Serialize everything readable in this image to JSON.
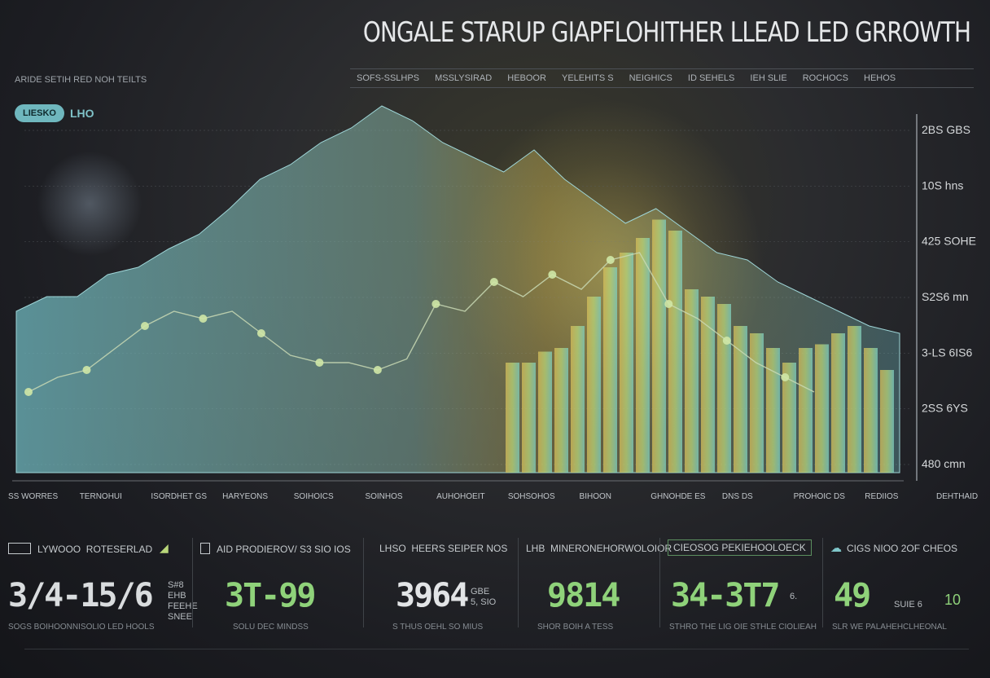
{
  "title": "ONGALE STARUP GIAPFLOHITHER LLEAD LED GRROWTH",
  "subtitle": "ARIDE SETIH RED NOH TEILTS",
  "header_strip": [
    "SOFS-SSLHPS",
    "MSSLYSIRAD",
    "HEBOOR",
    "YELEHITS S",
    "NEIGHICS",
    "ID SEHELS",
    "IEH SLIE",
    "ROCHOCS",
    "HEHOS"
  ],
  "legend": {
    "pill": "LIESKO",
    "tag": "LHO"
  },
  "colors": {
    "teal": "#6fb7be",
    "gold": "#d6be5a",
    "green": "#8fd27a",
    "gridline": "#5a5e63"
  },
  "chart_data": {
    "type": "area",
    "x_labels": [
      "SS WORRES",
      "TERNOHUI",
      "ISORDHET GS",
      "HARYEONS",
      "SOIHOICS",
      "SOINHOS",
      "AUHOHOEIT",
      "SOHSOHOS",
      "BIHOON",
      "GHNOHDE ES",
      "DNS DS",
      "PROHOIC DS",
      "REDIIOS",
      "DEHTHAID"
    ],
    "y_ticks": [
      "2BS GBS",
      "10S hns",
      "425 SOHE",
      "S2S6 mn",
      "3-LS 6IS6",
      "2SS 6YS",
      "480 cmn"
    ],
    "y_range": [
      0,
      100
    ],
    "grid": true,
    "series": [
      {
        "values": [
          44,
          48,
          48,
          54,
          56,
          61,
          65,
          72,
          80,
          84,
          90,
          94,
          100,
          96,
          90,
          86,
          82,
          88,
          80,
          74,
          68,
          72,
          66,
          60,
          58,
          52,
          48,
          44,
          40,
          38
        ]
      },
      {
        "values": [
          30,
          30,
          33,
          34,
          40,
          48,
          56,
          60,
          64,
          69,
          66,
          50,
          48,
          46,
          40,
          38,
          34,
          30,
          34,
          35,
          38,
          40,
          34,
          28
        ]
      },
      {
        "values": [
          22,
          26,
          28,
          34,
          40,
          44,
          42,
          44,
          38,
          32,
          30,
          30,
          28,
          31,
          46,
          44,
          52,
          48,
          54,
          50,
          58,
          60,
          46,
          42,
          36,
          30,
          26,
          22
        ]
      }
    ]
  },
  "stats": [
    {
      "title": "LYWOOO",
      "sub": "ROTESERLAD",
      "value": "3/4-15/6",
      "unit": [
        "S#8",
        "EHB",
        "FEEHE",
        "SNEE"
      ],
      "foot": "SOGS BOIHOONNISOLIO LED HOOLS",
      "color": "#d9dcde"
    },
    {
      "title": "AID",
      "sub": "PRODIEROV/ S3 SIO IOS",
      "value": "3T-99",
      "unit": [],
      "foot": "SOLU DEC  MINDSS",
      "color": "#8fd27a"
    },
    {
      "title": "LHSO",
      "sub": "HEERS SEIPER  NOS",
      "value": "3964",
      "unit": [
        "GBE",
        "5, SIO"
      ],
      "foot": "S THUS OEHL SO MIUS",
      "color": "#e2e4e6"
    },
    {
      "title": "LHB",
      "sub": "MINERONEHORWOLOIOR",
      "value": "9814",
      "unit": [],
      "foot": "SHOR  BOIH A TESS",
      "color": "#8fd27a"
    },
    {
      "title": "CIEOSOG",
      "sub": "PEKIEHOOLOECK",
      "value": "34-3T7",
      "unit": [
        "6."
      ],
      "foot": "STHRO THE LIG OIE STHLE  CIOLIEAH",
      "color": "#8fd27a"
    },
    {
      "title": "CIGS",
      "sub": "NIOO 2OF CHEOS",
      "value": "49",
      "unit": [
        "SUIE 6",
        "10"
      ],
      "foot": "SLR WE  PALAHEHCLHEONAL",
      "color": "#8fd27a"
    }
  ]
}
